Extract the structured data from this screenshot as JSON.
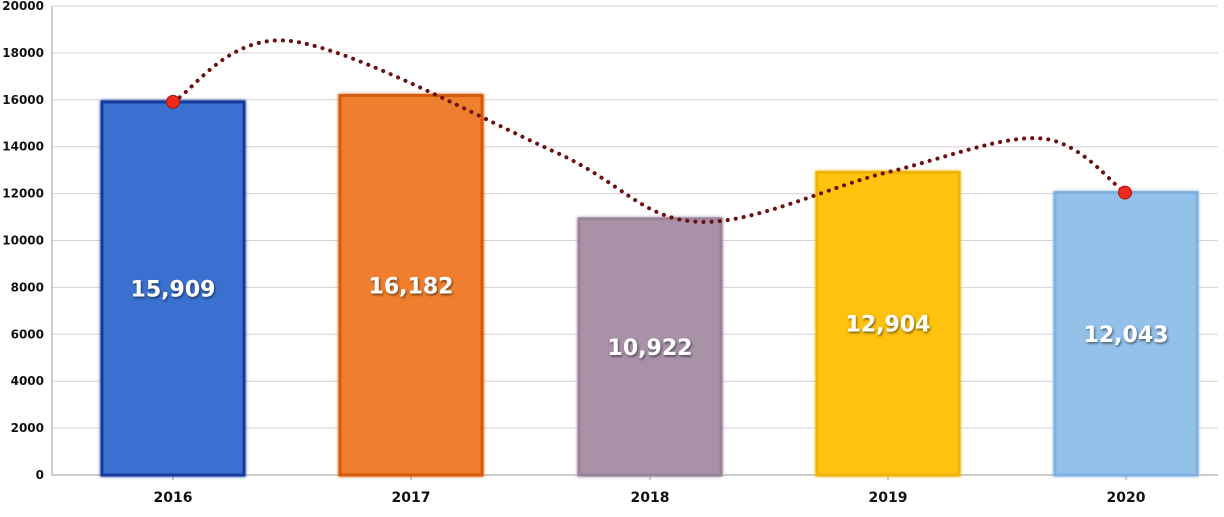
{
  "chart_data": {
    "type": "bar",
    "categories": [
      "2016",
      "2017",
      "2018",
      "2019",
      "2020"
    ],
    "values": [
      15909,
      16182,
      10922,
      12904,
      12043
    ],
    "data_labels": [
      "15,909",
      "16,182",
      "10,922",
      "12,904",
      "12,043"
    ],
    "bar_colors": [
      "#3a6fd0",
      "#ef7f2d",
      "#a991a8",
      "#ffc20e",
      "#93c1ea"
    ],
    "bar_edge_colors": [
      "#123a9c",
      "#d65a10",
      "#9a8398",
      "#f0b400",
      "#7fb2e0"
    ],
    "ylim": [
      0,
      20000
    ],
    "yticks": [
      "0",
      "2000",
      "4000",
      "6000",
      "8000",
      "10000",
      "12000",
      "14000",
      "16000",
      "18000",
      "20000"
    ],
    "grid": true,
    "grid_color": "#dccde0",
    "overlay_trend": {
      "style": "dotted-curve",
      "color": "#6b0f10",
      "marker_color": "#ee2a1b",
      "points": [
        {
          "x": "2016",
          "y": 15909
        },
        {
          "x": "2016.5",
          "y": 18500
        },
        {
          "x": "2017.6",
          "y": 13800
        },
        {
          "x": "2018.2",
          "y": 10800
        },
        {
          "x": "2019",
          "y": 12904
        },
        {
          "x": "2019.65",
          "y": 14350
        },
        {
          "x": "2020",
          "y": 12043
        }
      ],
      "markers": [
        "2016",
        "2020"
      ]
    },
    "title": "",
    "xlabel": "",
    "ylabel": ""
  }
}
